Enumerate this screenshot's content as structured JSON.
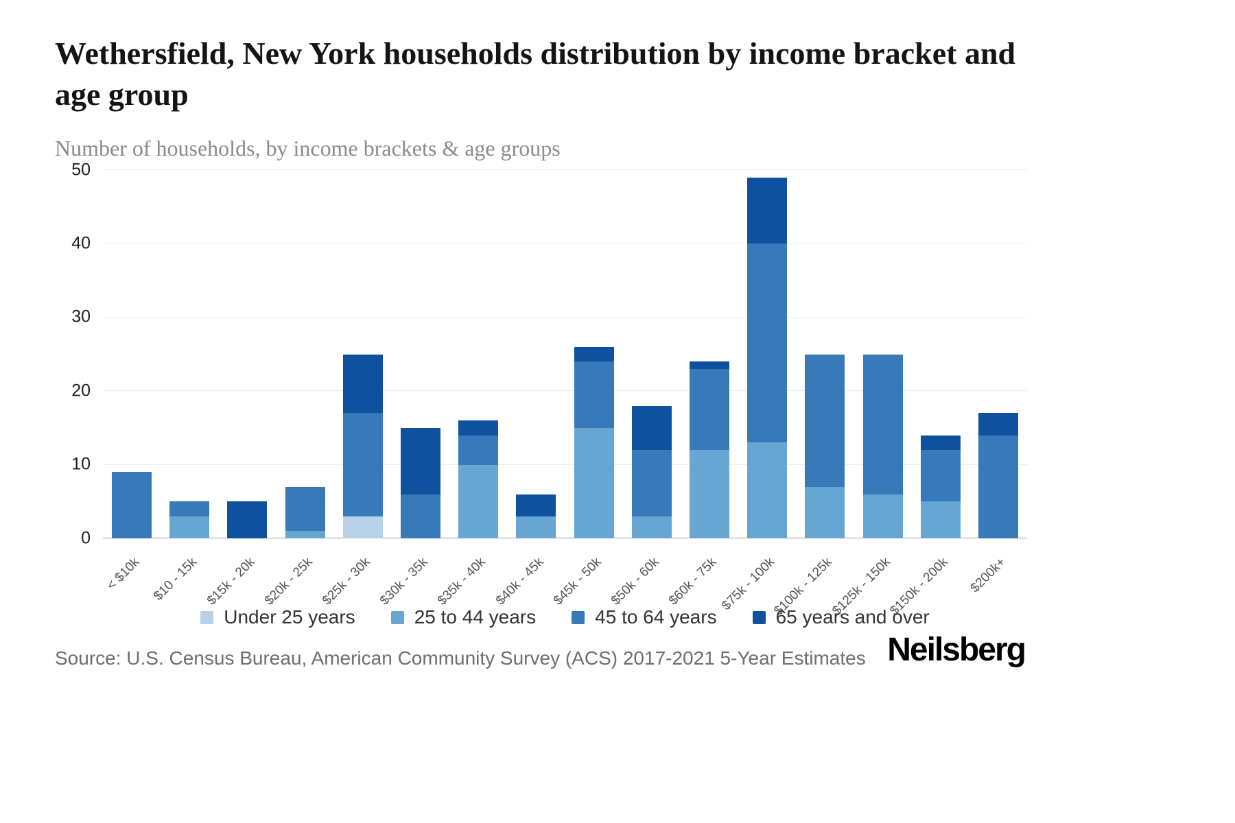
{
  "header": {
    "title": "Wethersfield, New York households distribution by income bracket and age group",
    "subtitle": "Number of households, by income brackets & age groups"
  },
  "chart_data": {
    "type": "bar",
    "stacked": true,
    "title": "Wethersfield, New York households distribution by income bracket and age group",
    "subtitle": "Number of households, by income brackets & age groups",
    "xlabel": "",
    "ylabel": "Number of households",
    "ylim": [
      0,
      50
    ],
    "yticks": [
      0,
      10,
      20,
      30,
      40,
      50
    ],
    "grid": true,
    "legend_position": "bottom",
    "categories": [
      "< $10k",
      "$10 - 15k",
      "$15k - 20k",
      "$20k - 25k",
      "$25k - 30k",
      "$30k - 35k",
      "$35k - 40k",
      "$40k - 45k",
      "$45k - 50k",
      "$50k - 60k",
      "$60k - 75k",
      "$75k - 100k",
      "$100k - 125k",
      "$125k - 150k",
      "$150k - 200k",
      "$200k+"
    ],
    "series": [
      {
        "name": "Under 25 years",
        "color": "#b5d2e8",
        "values": [
          0,
          0,
          0,
          0,
          3,
          0,
          0,
          0,
          0,
          0,
          0,
          0,
          0,
          0,
          0,
          0
        ]
      },
      {
        "name": "25 to 44 years",
        "color": "#67a6d3",
        "values": [
          0,
          3,
          0,
          1,
          0,
          0,
          10,
          3,
          15,
          3,
          12,
          13,
          7,
          6,
          5,
          0
        ]
      },
      {
        "name": "45 to 64 years",
        "color": "#3879b9",
        "values": [
          9,
          2,
          0,
          6,
          14,
          6,
          4,
          0,
          9,
          9,
          11,
          27,
          18,
          19,
          7,
          14
        ]
      },
      {
        "name": "65 years and over",
        "color": "#0f519f",
        "values": [
          0,
          0,
          5,
          0,
          8,
          9,
          2,
          3,
          2,
          6,
          1,
          9,
          0,
          0,
          2,
          3
        ]
      }
    ],
    "totals": [
      9,
      5,
      5,
      7,
      25,
      15,
      16,
      6,
      26,
      18,
      24,
      49,
      25,
      25,
      14,
      17
    ]
  },
  "footer": {
    "source": "Source: U.S. Census Bureau, American Community Survey (ACS) 2017-2021 5-Year Estimates",
    "brand": "Neilsberg"
  }
}
